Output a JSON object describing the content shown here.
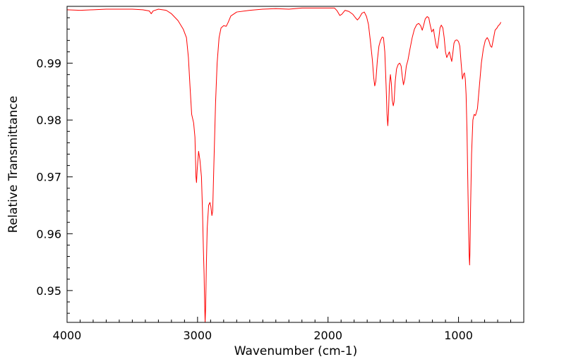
{
  "chart_data": {
    "type": "line",
    "title": "",
    "xlabel": "Wavenumber (cm-1)",
    "ylabel": "Relative Transmittance",
    "xlim": [
      4000,
      500
    ],
    "ylim": [
      0.9444,
      1.0
    ],
    "x_reversed": true,
    "grid": false,
    "legend": "none",
    "x_ticks": [
      {
        "value": 4000,
        "label": "4000"
      },
      {
        "value": 3000,
        "label": "3000"
      },
      {
        "value": 2000,
        "label": "2000"
      },
      {
        "value": 1000,
        "label": "1000"
      }
    ],
    "x_minor_step": 100,
    "y_ticks": [
      {
        "value": 0.95,
        "label": "0.95"
      },
      {
        "value": 0.96,
        "label": "0.96"
      },
      {
        "value": 0.97,
        "label": "0.97"
      },
      {
        "value": 0.98,
        "label": "0.98"
      },
      {
        "value": 0.99,
        "label": "0.99"
      }
    ],
    "y_minor_step": 0.002,
    "series": [
      {
        "color": "#ff0000",
        "points": [
          [
            4000,
            0.9994
          ],
          [
            3900,
            0.9993
          ],
          [
            3800,
            0.9994
          ],
          [
            3700,
            0.9995
          ],
          [
            3600,
            0.9995
          ],
          [
            3500,
            0.9995
          ],
          [
            3420,
            0.9994
          ],
          [
            3370,
            0.9992
          ],
          [
            3355,
            0.9987
          ],
          [
            3340,
            0.9992
          ],
          [
            3300,
            0.9995
          ],
          [
            3240,
            0.9993
          ],
          [
            3200,
            0.9987
          ],
          [
            3150,
            0.9975
          ],
          [
            3110,
            0.996
          ],
          [
            3085,
            0.9945
          ],
          [
            3070,
            0.991
          ],
          [
            3058,
            0.986
          ],
          [
            3045,
            0.981
          ],
          [
            3030,
            0.9795
          ],
          [
            3020,
            0.977
          ],
          [
            3012,
            0.97
          ],
          [
            3008,
            0.969
          ],
          [
            3002,
            0.9715
          ],
          [
            2992,
            0.9745
          ],
          [
            2982,
            0.973
          ],
          [
            2970,
            0.97
          ],
          [
            2962,
            0.964
          ],
          [
            2955,
            0.957
          ],
          [
            2950,
            0.953
          ],
          [
            2946,
            0.948
          ],
          [
            2942,
            0.9444
          ],
          [
            2938,
            0.947
          ],
          [
            2932,
            0.955
          ],
          [
            2926,
            0.961
          ],
          [
            2915,
            0.965
          ],
          [
            2905,
            0.9655
          ],
          [
            2898,
            0.9648
          ],
          [
            2890,
            0.9632
          ],
          [
            2884,
            0.964
          ],
          [
            2875,
            0.972
          ],
          [
            2862,
            0.983
          ],
          [
            2850,
            0.99
          ],
          [
            2835,
            0.9945
          ],
          [
            2820,
            0.9962
          ],
          [
            2800,
            0.9966
          ],
          [
            2780,
            0.9965
          ],
          [
            2765,
            0.9972
          ],
          [
            2745,
            0.9983
          ],
          [
            2700,
            0.999
          ],
          [
            2600,
            0.9993
          ],
          [
            2500,
            0.9995
          ],
          [
            2400,
            0.9996
          ],
          [
            2300,
            0.9995
          ],
          [
            2200,
            0.9997
          ],
          [
            2100,
            0.9997
          ],
          [
            2000,
            0.9997
          ],
          [
            1950,
            0.9997
          ],
          [
            1930,
            0.9992
          ],
          [
            1910,
            0.9984
          ],
          [
            1895,
            0.9986
          ],
          [
            1870,
            0.9993
          ],
          [
            1840,
            0.9991
          ],
          [
            1810,
            0.9986
          ],
          [
            1790,
            0.998
          ],
          [
            1775,
            0.9976
          ],
          [
            1760,
            0.998
          ],
          [
            1740,
            0.9988
          ],
          [
            1722,
            0.999
          ],
          [
            1705,
            0.9982
          ],
          [
            1690,
            0.9968
          ],
          [
            1675,
            0.9938
          ],
          [
            1660,
            0.9905
          ],
          [
            1650,
            0.9875
          ],
          [
            1642,
            0.986
          ],
          [
            1634,
            0.9868
          ],
          [
            1622,
            0.9905
          ],
          [
            1610,
            0.993
          ],
          [
            1598,
            0.994
          ],
          [
            1585,
            0.9946
          ],
          [
            1575,
            0.9945
          ],
          [
            1565,
            0.992
          ],
          [
            1555,
            0.986
          ],
          [
            1548,
            0.981
          ],
          [
            1542,
            0.979
          ],
          [
            1537,
            0.981
          ],
          [
            1530,
            0.986
          ],
          [
            1522,
            0.988
          ],
          [
            1515,
            0.9865
          ],
          [
            1508,
            0.9835
          ],
          [
            1500,
            0.9825
          ],
          [
            1494,
            0.9832
          ],
          [
            1485,
            0.9868
          ],
          [
            1475,
            0.989
          ],
          [
            1462,
            0.9898
          ],
          [
            1450,
            0.99
          ],
          [
            1440,
            0.9895
          ],
          [
            1430,
            0.9875
          ],
          [
            1422,
            0.9862
          ],
          [
            1412,
            0.9872
          ],
          [
            1400,
            0.9895
          ],
          [
            1388,
            0.9905
          ],
          [
            1372,
            0.9925
          ],
          [
            1355,
            0.9945
          ],
          [
            1338,
            0.996
          ],
          [
            1320,
            0.9968
          ],
          [
            1305,
            0.997
          ],
          [
            1290,
            0.9966
          ],
          [
            1278,
            0.9958
          ],
          [
            1268,
            0.9966
          ],
          [
            1255,
            0.9978
          ],
          [
            1240,
            0.9982
          ],
          [
            1228,
            0.998
          ],
          [
            1218,
            0.9968
          ],
          [
            1205,
            0.9955
          ],
          [
            1192,
            0.996
          ],
          [
            1182,
            0.9945
          ],
          [
            1170,
            0.993
          ],
          [
            1162,
            0.9926
          ],
          [
            1152,
            0.9942
          ],
          [
            1142,
            0.9962
          ],
          [
            1132,
            0.9967
          ],
          [
            1120,
            0.9962
          ],
          [
            1110,
            0.9945
          ],
          [
            1100,
            0.992
          ],
          [
            1090,
            0.991
          ],
          [
            1080,
            0.9915
          ],
          [
            1070,
            0.992
          ],
          [
            1060,
            0.991
          ],
          [
            1052,
            0.9903
          ],
          [
            1045,
            0.9915
          ],
          [
            1035,
            0.9935
          ],
          [
            1025,
            0.994
          ],
          [
            1012,
            0.9941
          ],
          [
            1000,
            0.9938
          ],
          [
            990,
            0.993
          ],
          [
            980,
            0.99
          ],
          [
            970,
            0.9872
          ],
          [
            962,
            0.988
          ],
          [
            955,
            0.9883
          ],
          [
            948,
            0.9872
          ],
          [
            942,
            0.9845
          ],
          [
            935,
            0.978
          ],
          [
            928,
            0.968
          ],
          [
            922,
            0.96
          ],
          [
            918,
            0.956
          ],
          [
            915,
            0.9545
          ],
          [
            912,
            0.957
          ],
          [
            908,
            0.964
          ],
          [
            900,
            0.974
          ],
          [
            890,
            0.98
          ],
          [
            880,
            0.981
          ],
          [
            870,
            0.9808
          ],
          [
            855,
            0.982
          ],
          [
            840,
            0.986
          ],
          [
            825,
            0.99
          ],
          [
            810,
            0.9925
          ],
          [
            795,
            0.994
          ],
          [
            780,
            0.9945
          ],
          [
            768,
            0.994
          ],
          [
            755,
            0.993
          ],
          [
            745,
            0.9928
          ],
          [
            735,
            0.994
          ],
          [
            720,
            0.9958
          ],
          [
            705,
            0.9962
          ],
          [
            695,
            0.9966
          ],
          [
            685,
            0.9968
          ],
          [
            675,
            0.9972
          ]
        ]
      }
    ]
  }
}
